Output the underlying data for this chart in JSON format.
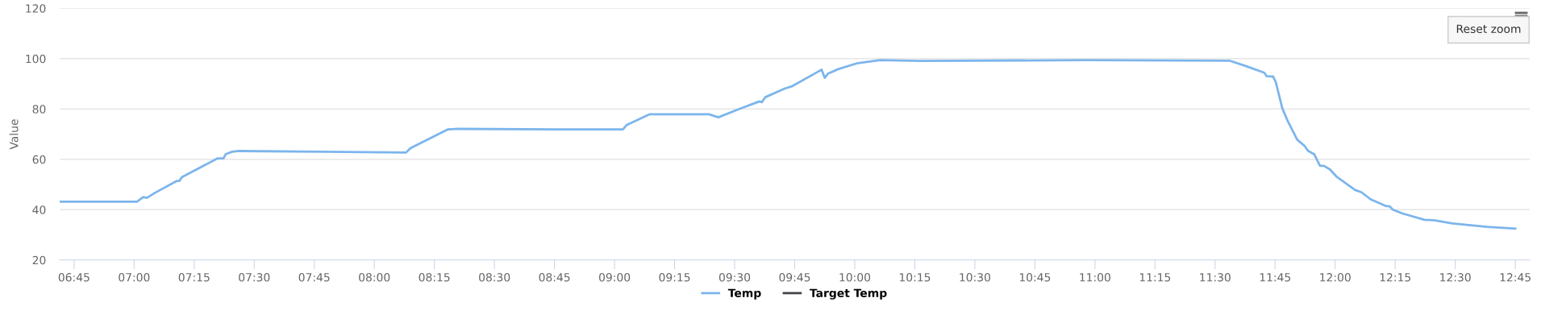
{
  "chart_data": {
    "type": "line",
    "ylabel": "Value",
    "xlim": [
      6.69,
      12.81
    ],
    "xticks": [
      {
        "value": 6.75,
        "label": "06:45"
      },
      {
        "value": 7,
        "label": "07:00"
      },
      {
        "value": 7.25,
        "label": "07:15"
      },
      {
        "value": 7.5,
        "label": "07:30"
      },
      {
        "value": 7.75,
        "label": "07:45"
      },
      {
        "value": 8,
        "label": "08:00"
      },
      {
        "value": 8.25,
        "label": "08:15"
      },
      {
        "value": 8.5,
        "label": "08:30"
      },
      {
        "value": 8.75,
        "label": "08:45"
      },
      {
        "value": 9,
        "label": "09:00"
      },
      {
        "value": 9.25,
        "label": "09:15"
      },
      {
        "value": 9.5,
        "label": "09:30"
      },
      {
        "value": 9.75,
        "label": "09:45"
      },
      {
        "value": 10,
        "label": "10:00"
      },
      {
        "value": 10.25,
        "label": "10:15"
      },
      {
        "value": 10.5,
        "label": "10:30"
      },
      {
        "value": 10.75,
        "label": "10:45"
      },
      {
        "value": 11,
        "label": "11:00"
      },
      {
        "value": 11.25,
        "label": "11:15"
      },
      {
        "value": 11.5,
        "label": "11:30"
      },
      {
        "value": 11.75,
        "label": "11:45"
      },
      {
        "value": 12,
        "label": "12:00"
      },
      {
        "value": 12.25,
        "label": "12:15"
      },
      {
        "value": 12.5,
        "label": "12:30"
      },
      {
        "value": 12.75,
        "label": "12:45"
      }
    ],
    "ylim": [
      20,
      120
    ],
    "yticks": [
      20,
      40,
      60,
      80,
      100,
      120
    ],
    "grid": "y",
    "legend": "bottom",
    "line_style": "solid",
    "annotations": [
      "Reset zoom"
    ],
    "series": [
      {
        "name": "Temp",
        "color": "#7cb5ec",
        "x": [
          6.693,
          7.012,
          7.038,
          7.053,
          7.087,
          7.177,
          7.188,
          7.2,
          7.348,
          7.372,
          7.382,
          7.408,
          7.438,
          7.79,
          8.132,
          8.15,
          8.307,
          8.352,
          8.75,
          8.997,
          9.035,
          9.05,
          9.147,
          9.393,
          9.432,
          9.522,
          9.603,
          9.613,
          9.628,
          9.708,
          9.738,
          9.862,
          9.875,
          9.888,
          9.933,
          10.008,
          10.105,
          10.27,
          10.958,
          11.56,
          11.627,
          11.705,
          11.715,
          11.742,
          11.753,
          11.78,
          11.802,
          11.842,
          11.873,
          11.887,
          11.913,
          11.937,
          11.953,
          11.978,
          12.005,
          12.083,
          12.11,
          12.148,
          12.213,
          12.227,
          12.24,
          12.28,
          12.372,
          12.41,
          12.488,
          12.632,
          12.75
        ],
        "values": [
          43.2,
          43.2,
          45.0,
          44.7,
          46.7,
          51.4,
          51.4,
          53.0,
          60.4,
          60.4,
          62.1,
          63.0,
          63.3,
          63.0,
          62.7,
          64.4,
          71.9,
          72.1,
          71.9,
          71.9,
          71.9,
          73.6,
          77.9,
          77.9,
          76.7,
          80.1,
          83.0,
          82.7,
          84.7,
          88.1,
          89.0,
          95.6,
          92.4,
          94.0,
          95.9,
          98.1,
          99.4,
          99.1,
          99.4,
          99.2,
          97.1,
          94.4,
          93.0,
          92.9,
          90.6,
          80.3,
          75.3,
          67.8,
          65.3,
          63.4,
          62.0,
          57.4,
          57.4,
          56.0,
          53.2,
          47.8,
          46.9,
          44.1,
          41.4,
          41.3,
          40.0,
          38.5,
          36.0,
          35.8,
          34.5,
          33.2,
          32.5
        ]
      },
      {
        "name": "Target Temp",
        "color": "#434348"
      }
    ]
  }
}
